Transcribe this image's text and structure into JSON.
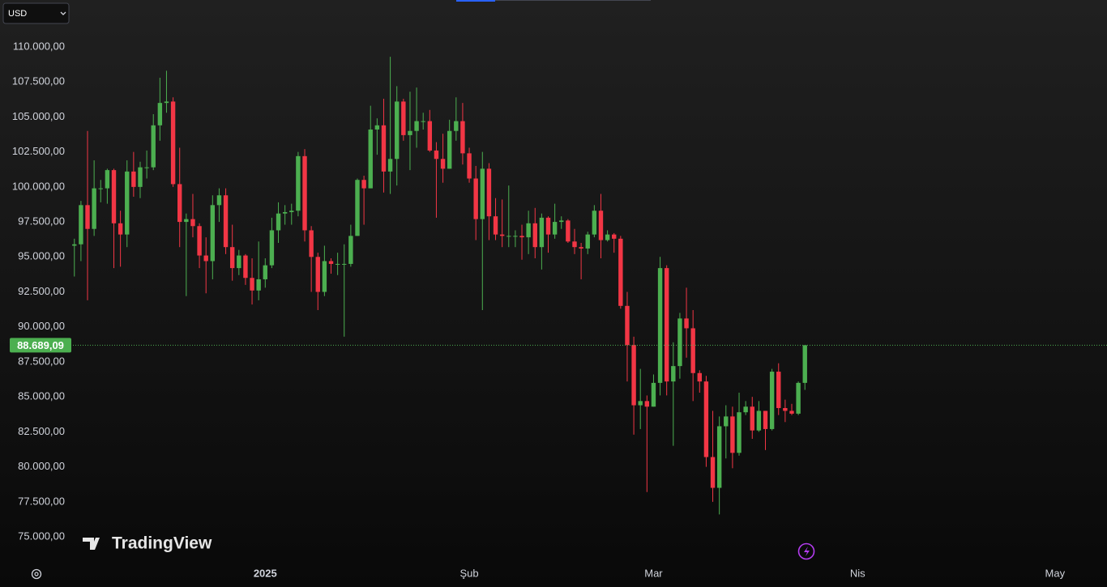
{
  "chart_data": {
    "type": "candlestick",
    "currency": "USD",
    "watermark": "TradingView",
    "up_color": "#4caf50",
    "down_color": "#f23645",
    "grid": false,
    "last_price": 88689.09,
    "last_price_label": "88.689,09",
    "categories": [
      null,
      null,
      null,
      null,
      null,
      null,
      null,
      null,
      null,
      null,
      null,
      null,
      null,
      null,
      null,
      null,
      null,
      null,
      null,
      null,
      null,
      null,
      null,
      null,
      null,
      null,
      null,
      null,
      null,
      null,
      null,
      null,
      null,
      null,
      null,
      null,
      null,
      null,
      null,
      null,
      null,
      null,
      null,
      null,
      null,
      null,
      null,
      null,
      null,
      null,
      null,
      null,
      null,
      null,
      null,
      null,
      null,
      null,
      null,
      null,
      null,
      null,
      null,
      null,
      null,
      null,
      null,
      null,
      null,
      null,
      null,
      null,
      null,
      null,
      null,
      null,
      null,
      null,
      null,
      null,
      null,
      null,
      null,
      null,
      null,
      null,
      null,
      null,
      null,
      null,
      null,
      null,
      null,
      null,
      null,
      null,
      null,
      null,
      null,
      null,
      null,
      null,
      null,
      null,
      null,
      null,
      null,
      null,
      null,
      null,
      null,
      null
    ],
    "xlim": [
      -11.3,
      156.9
    ],
    "xticks": [
      {
        "value": 29,
        "label": "2025"
      },
      {
        "value": 60,
        "label": "Şub"
      },
      {
        "value": 88,
        "label": "Mar"
      },
      {
        "value": 119,
        "label": "Nis"
      },
      {
        "value": 149,
        "label": "May"
      }
    ],
    "ylim": [
      73440,
      113355
    ],
    "yticks": [
      {
        "value": 75000,
        "label": "75.000,00"
      },
      {
        "value": 77500,
        "label": "77.500,00"
      },
      {
        "value": 80000,
        "label": "80.000,00"
      },
      {
        "value": 82500,
        "label": "82.500,00"
      },
      {
        "value": 85000,
        "label": "85.000,00"
      },
      {
        "value": 87500,
        "label": "87.500,00"
      },
      {
        "value": 90000,
        "label": "90.000,00"
      },
      {
        "value": 92500,
        "label": "92.500,00"
      },
      {
        "value": 95000,
        "label": "95.000,00"
      },
      {
        "value": 97500,
        "label": "97.500,00"
      },
      {
        "value": 100000,
        "label": "100.000,00"
      },
      {
        "value": 102500,
        "label": "102.500,00"
      },
      {
        "value": 105000,
        "label": "105.000,00"
      },
      {
        "value": 107500,
        "label": "107.500,00"
      },
      {
        "value": 110000,
        "label": "110.000,00"
      }
    ],
    "open": [
      95800,
      95900,
      98700,
      97000,
      99900,
      99900,
      101200,
      97400,
      96600,
      101100,
      100000,
      101400,
      101400,
      104400,
      106000,
      106100,
      100200,
      97500,
      97700,
      97200,
      95100,
      94700,
      98700,
      99400,
      95700,
      94200,
      95100,
      93500,
      92600,
      93400,
      94400,
      96900,
      98100,
      98200,
      98300,
      102200,
      96900,
      95000,
      92500,
      94700,
      94500,
      94500,
      94500,
      96500,
      100500,
      99900,
      104100,
      104400,
      101100,
      102000,
      106100,
      103700,
      104000,
      104700,
      104700,
      102600,
      102000,
      101300,
      104000,
      104700,
      102400,
      100600,
      97700,
      101300,
      97900,
      96600,
      96500,
      96500,
      96500,
      96400,
      97400,
      95700,
      97800,
      96600,
      97500,
      97600,
      96100,
      95700,
      95600,
      96600,
      98300,
      96200,
      96600,
      96300,
      91500,
      88700,
      84400,
      84700,
      84300,
      86000,
      94200,
      86100,
      87200,
      90600,
      89900,
      86700,
      86100,
      80700,
      78500,
      82900,
      83600,
      81000,
      83900,
      84300,
      82600,
      84000,
      82700,
      86800,
      84200,
      84000,
      83800,
      86000
    ],
    "high": [
      96300,
      99000,
      104000,
      101900,
      100500,
      101300,
      101300,
      98300,
      101900,
      102500,
      101800,
      102600,
      105200,
      107800,
      108300,
      106400,
      102800,
      98100,
      99500,
      97400,
      96400,
      99400,
      99900,
      99900,
      97300,
      95500,
      95200,
      94900,
      96100,
      94900,
      97800,
      98900,
      98700,
      98800,
      102500,
      102700,
      97200,
      95300,
      95800,
      94900,
      95300,
      95900,
      97300,
      100600,
      100800,
      105800,
      104900,
      106300,
      109300,
      107200,
      106300,
      106800,
      107100,
      105300,
      105500,
      103200,
      103800,
      104800,
      106400,
      106000,
      102800,
      101500,
      102500,
      101700,
      99200,
      99100,
      100100,
      96900,
      97300,
      98300,
      98500,
      98100,
      97900,
      98800,
      97900,
      97700,
      97000,
      96000,
      96800,
      98700,
      99500,
      96900,
      96700,
      96500,
      92500,
      89300,
      87000,
      85100,
      86600,
      95000,
      94400,
      88900,
      91000,
      92800,
      91200,
      86900,
      86500,
      84000,
      83600,
      84400,
      84300,
      85300,
      84700,
      85000,
      84700,
      84000,
      87000,
      87400,
      84800,
      84500,
      86100,
      88689.09
    ],
    "low": [
      93600,
      94700,
      91900,
      96500,
      98900,
      98800,
      94200,
      94300,
      95700,
      99300,
      99200,
      100600,
      101200,
      103300,
      105300,
      100000,
      95700,
      92200,
      96400,
      94200,
      92400,
      93400,
      97500,
      95200,
      93300,
      93700,
      93000,
      91600,
      91900,
      92800,
      94200,
      96000,
      97300,
      97300,
      97900,
      96100,
      92500,
      91200,
      92200,
      93800,
      93700,
      89300,
      94300,
      96500,
      97300,
      99900,
      102300,
      99600,
      99500,
      100100,
      103300,
      101200,
      102800,
      104100,
      102500,
      97800,
      100300,
      101300,
      103300,
      101600,
      100300,
      96200,
      91200,
      96200,
      96200,
      95700,
      95700,
      95700,
      94800,
      95200,
      94900,
      94100,
      95300,
      96300,
      97000,
      96000,
      95200,
      93400,
      95200,
      96400,
      94900,
      96100,
      95300,
      91300,
      86100,
      82300,
      82700,
      78200,
      84300,
      85100,
      85100,
      81500,
      86300,
      87800,
      84700,
      85300,
      80000,
      77500,
      76600,
      80600,
      79900,
      80800,
      83700,
      82000,
      82500,
      81200,
      82600,
      83700,
      83200,
      83700,
      83700,
      85500
    ],
    "close": [
      95900,
      98700,
      97000,
      99900,
      99900,
      101200,
      97400,
      96600,
      101100,
      100000,
      101400,
      101400,
      104400,
      106000,
      106100,
      100200,
      97500,
      97700,
      97200,
      95100,
      94700,
      98700,
      99400,
      95700,
      94200,
      95100,
      93500,
      92600,
      93400,
      94400,
      96900,
      98100,
      98200,
      98300,
      102200,
      96900,
      95000,
      92500,
      94700,
      94500,
      94500,
      94500,
      96500,
      100500,
      99900,
      104100,
      104400,
      101100,
      102000,
      106100,
      103700,
      104000,
      104700,
      104700,
      102600,
      102000,
      101300,
      104000,
      104700,
      102400,
      100600,
      97700,
      101300,
      97900,
      96600,
      96500,
      96500,
      96500,
      96400,
      97400,
      95700,
      97800,
      96600,
      97500,
      97600,
      96100,
      95700,
      95600,
      96600,
      98300,
      96200,
      96600,
      96300,
      91500,
      88700,
      84400,
      84700,
      84300,
      86000,
      94200,
      86100,
      87200,
      90600,
      89900,
      86700,
      86100,
      80700,
      78500,
      82900,
      83600,
      81000,
      83900,
      84300,
      82600,
      84000,
      82700,
      86800,
      84200,
      84000,
      83800,
      86000,
      88689.09
    ]
  }
}
